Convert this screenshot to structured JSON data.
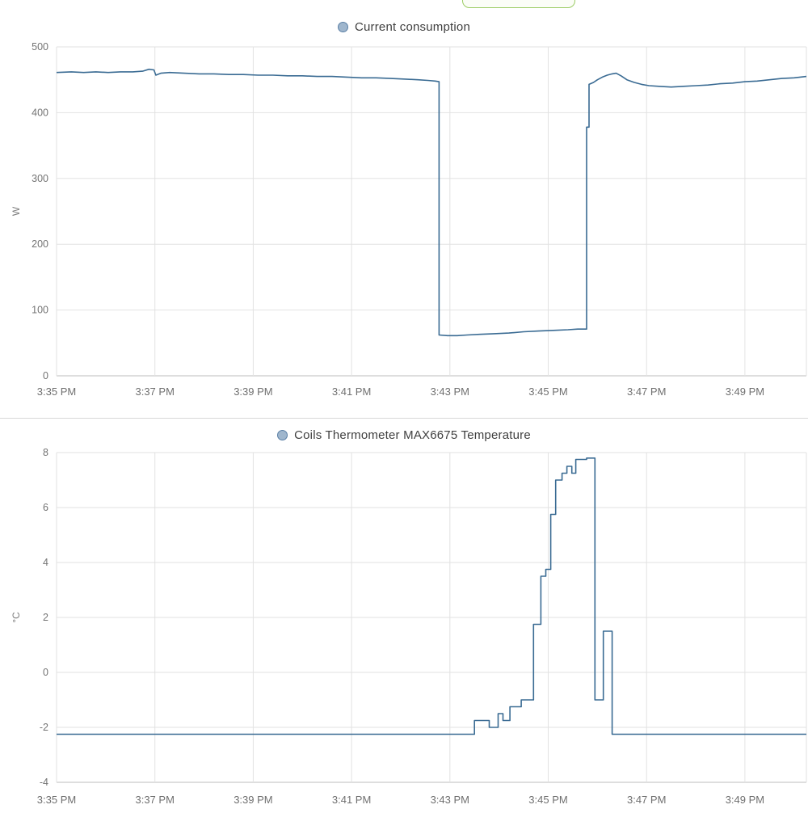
{
  "pill": {
    "border_color": "#9ccc65",
    "fill_color": "#fbfdf7"
  },
  "chart_data": [
    {
      "type": "line",
      "title": "Current consumption",
      "ylabel": "W",
      "ylim": [
        0,
        500
      ],
      "y_ticks": [
        0,
        100,
        200,
        300,
        400,
        500
      ],
      "xlim": [
        0,
        15.25
      ],
      "x_unit": "minutes after 3:35 PM",
      "x_tick_values": [
        0,
        2,
        4,
        6,
        8,
        10,
        12,
        14
      ],
      "x_tick_labels": [
        "3:35 PM",
        "3:37 PM",
        "3:39 PM",
        "3:41 PM",
        "3:43 PM",
        "3:45 PM",
        "3:47 PM",
        "3:49 PM"
      ],
      "grid": true,
      "legend_position": "top-center",
      "color": "#3a6b93",
      "legend_fill": "#9fb6cd",
      "legend_border": "#5a7fa5",
      "points": [
        [
          0,
          461
        ],
        [
          0.3,
          462
        ],
        [
          0.55,
          461
        ],
        [
          0.8,
          462
        ],
        [
          1.05,
          461
        ],
        [
          1.3,
          462
        ],
        [
          1.55,
          462
        ],
        [
          1.75,
          463
        ],
        [
          1.88,
          466
        ],
        [
          1.98,
          465
        ],
        [
          2.02,
          457
        ],
        [
          2.12,
          460
        ],
        [
          2.3,
          461
        ],
        [
          2.6,
          460
        ],
        [
          2.9,
          459
        ],
        [
          3.2,
          459
        ],
        [
          3.5,
          458
        ],
        [
          3.8,
          458
        ],
        [
          4.1,
          457
        ],
        [
          4.4,
          457
        ],
        [
          4.7,
          456
        ],
        [
          5.0,
          456
        ],
        [
          5.3,
          455
        ],
        [
          5.6,
          455
        ],
        [
          5.9,
          454
        ],
        [
          6.2,
          453
        ],
        [
          6.5,
          453
        ],
        [
          6.8,
          452
        ],
        [
          7.1,
          451
        ],
        [
          7.35,
          450
        ],
        [
          7.55,
          449
        ],
        [
          7.7,
          448
        ],
        [
          7.78,
          447
        ],
        [
          7.78,
          62
        ],
        [
          7.95,
          61
        ],
        [
          8.15,
          61
        ],
        [
          8.35,
          62
        ],
        [
          8.6,
          63
        ],
        [
          8.9,
          64
        ],
        [
          9.2,
          65
        ],
        [
          9.5,
          67
        ],
        [
          9.8,
          68
        ],
        [
          10.1,
          69
        ],
        [
          10.4,
          70
        ],
        [
          10.6,
          71
        ],
        [
          10.78,
          71
        ],
        [
          10.78,
          378
        ],
        [
          10.83,
          378
        ],
        [
          10.83,
          443
        ],
        [
          10.92,
          446
        ],
        [
          11.0,
          450
        ],
        [
          11.1,
          454
        ],
        [
          11.2,
          457
        ],
        [
          11.3,
          459
        ],
        [
          11.38,
          460
        ],
        [
          11.48,
          456
        ],
        [
          11.6,
          450
        ],
        [
          11.75,
          446
        ],
        [
          11.9,
          443
        ],
        [
          12.05,
          441
        ],
        [
          12.25,
          440
        ],
        [
          12.5,
          439
        ],
        [
          12.75,
          440
        ],
        [
          13.0,
          441
        ],
        [
          13.25,
          442
        ],
        [
          13.5,
          444
        ],
        [
          13.75,
          445
        ],
        [
          14.0,
          447
        ],
        [
          14.25,
          448
        ],
        [
          14.5,
          450
        ],
        [
          14.75,
          452
        ],
        [
          15.0,
          453
        ],
        [
          15.25,
          455
        ]
      ]
    },
    {
      "type": "line",
      "title": "Coils Thermometer MAX6675 Temperature",
      "ylabel": "°C",
      "ylim": [
        -4,
        8
      ],
      "y_ticks": [
        -4,
        -2,
        0,
        2,
        4,
        6,
        8
      ],
      "xlim": [
        0,
        15.25
      ],
      "x_unit": "minutes after 3:35 PM",
      "x_tick_values": [
        0,
        2,
        4,
        6,
        8,
        10,
        12,
        14
      ],
      "x_tick_labels": [
        "3:35 PM",
        "3:37 PM",
        "3:39 PM",
        "3:41 PM",
        "3:43 PM",
        "3:45 PM",
        "3:47 PM",
        "3:49 PM"
      ],
      "grid": true,
      "legend_position": "top-center",
      "color": "#3a6b93",
      "legend_fill": "#9fb6cd",
      "legend_border": "#5a7fa5",
      "points": [
        [
          0,
          -2.25
        ],
        [
          8.5,
          -2.25
        ],
        [
          8.5,
          -1.75
        ],
        [
          8.8,
          -1.75
        ],
        [
          8.8,
          -2.0
        ],
        [
          8.98,
          -2.0
        ],
        [
          8.98,
          -1.5
        ],
        [
          9.08,
          -1.5
        ],
        [
          9.08,
          -1.75
        ],
        [
          9.22,
          -1.75
        ],
        [
          9.22,
          -1.25
        ],
        [
          9.45,
          -1.25
        ],
        [
          9.45,
          -1.0
        ],
        [
          9.7,
          -1.0
        ],
        [
          9.7,
          1.75
        ],
        [
          9.85,
          1.75
        ],
        [
          9.85,
          3.5
        ],
        [
          9.95,
          3.5
        ],
        [
          9.95,
          3.75
        ],
        [
          10.05,
          3.75
        ],
        [
          10.05,
          5.75
        ],
        [
          10.15,
          5.75
        ],
        [
          10.15,
          7.0
        ],
        [
          10.28,
          7.0
        ],
        [
          10.28,
          7.25
        ],
        [
          10.38,
          7.25
        ],
        [
          10.38,
          7.5
        ],
        [
          10.48,
          7.5
        ],
        [
          10.48,
          7.25
        ],
        [
          10.56,
          7.25
        ],
        [
          10.56,
          7.75
        ],
        [
          10.78,
          7.75
        ],
        [
          10.78,
          7.8
        ],
        [
          10.95,
          7.8
        ],
        [
          10.95,
          -1.0
        ],
        [
          11.12,
          -1.0
        ],
        [
          11.12,
          1.5
        ],
        [
          11.3,
          1.5
        ],
        [
          11.3,
          -2.25
        ],
        [
          15.25,
          -2.25
        ]
      ]
    }
  ]
}
